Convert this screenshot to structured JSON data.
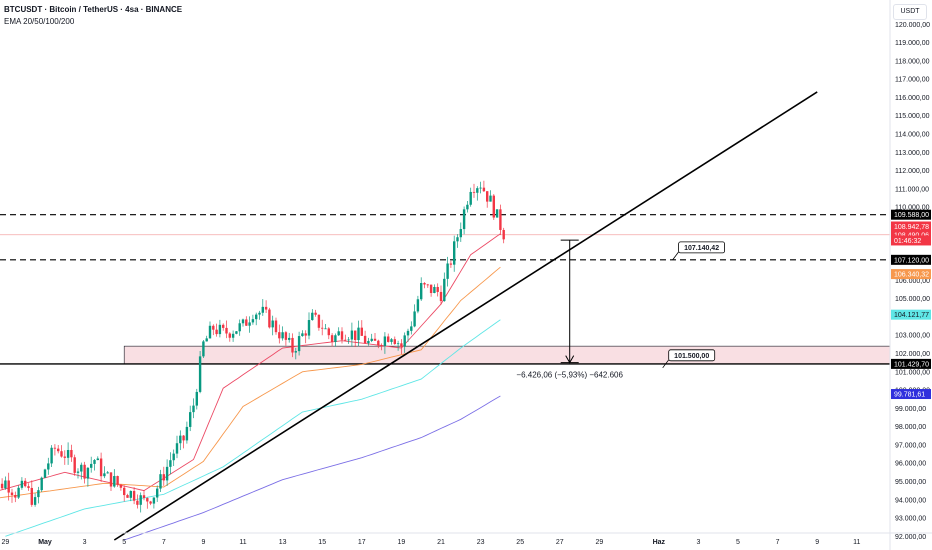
{
  "legend": {
    "symbol_line": "BTCUSDT · Bitcoin / TetherUS · 4sa · BINANCE",
    "indicator_line": "EMA 20/50/100/200"
  },
  "currency_label": "USDT",
  "chart_data": {
    "type": "candlestick",
    "ylim": [
      91800,
      121000
    ],
    "y_ticks": [
      {
        "value": 120000,
        "label": "120.000,00"
      },
      {
        "value": 119000,
        "label": "119.000,00"
      },
      {
        "value": 118000,
        "label": "118.000,00"
      },
      {
        "value": 117000,
        "label": "117.000,00"
      },
      {
        "value": 116000,
        "label": "116.000,00"
      },
      {
        "value": 115000,
        "label": "115.000,00"
      },
      {
        "value": 114000,
        "label": "114.000,00"
      },
      {
        "value": 113000,
        "label": "113.000,00"
      },
      {
        "value": 112000,
        "label": "112.000,00"
      },
      {
        "value": 111000,
        "label": "111.000,00"
      },
      {
        "value": 110000,
        "label": "110.000,00"
      },
      {
        "value": 106000,
        "label": "106.000,00"
      },
      {
        "value": 105000,
        "label": "105.000,00"
      },
      {
        "value": 103000,
        "label": "103.000,00"
      },
      {
        "value": 102000,
        "label": "102.000,00"
      },
      {
        "value": 101000,
        "label": "101.000,00"
      },
      {
        "value": 100000,
        "label": "100.000,00"
      },
      {
        "value": 99000,
        "label": "99.000,00"
      },
      {
        "value": 98000,
        "label": "98.000,00"
      },
      {
        "value": 97000,
        "label": "97.000,00"
      },
      {
        "value": 96000,
        "label": "96.000,00"
      },
      {
        "value": 95000,
        "label": "95.000,00"
      },
      {
        "value": 94000,
        "label": "94.000,00"
      },
      {
        "value": 93000,
        "label": "93.000,00"
      },
      {
        "value": 92000,
        "label": "92.000,00"
      }
    ],
    "x_ticks": [
      {
        "day": -2,
        "label": "29"
      },
      {
        "day": 0,
        "label": "May"
      },
      {
        "day": 2,
        "label": "3"
      },
      {
        "day": 4,
        "label": "5"
      },
      {
        "day": 6,
        "label": "7"
      },
      {
        "day": 8,
        "label": "9"
      },
      {
        "day": 10,
        "label": "11"
      },
      {
        "day": 12,
        "label": "13"
      },
      {
        "day": 14,
        "label": "15"
      },
      {
        "day": 16,
        "label": "17"
      },
      {
        "day": 18,
        "label": "19"
      },
      {
        "day": 20,
        "label": "21"
      },
      {
        "day": 22,
        "label": "23"
      },
      {
        "day": 24,
        "label": "25"
      },
      {
        "day": 26,
        "label": "27"
      },
      {
        "day": 28,
        "label": "29"
      },
      {
        "day": 31,
        "label": "Haz"
      },
      {
        "day": 33,
        "label": "3"
      },
      {
        "day": 35,
        "label": "5"
      },
      {
        "day": 37,
        "label": "7"
      },
      {
        "day": 39,
        "label": "9"
      },
      {
        "day": 41,
        "label": "11"
      }
    ],
    "ohlc_keypoints_close": [
      [
        -3.0,
        94800
      ],
      [
        -2.5,
        94600
      ],
      [
        -2.0,
        95000
      ],
      [
        -1.5,
        94400
      ],
      [
        -1.0,
        94700
      ],
      [
        -0.5,
        93800
      ],
      [
        0.0,
        95700
      ],
      [
        0.5,
        96800
      ],
      [
        1.0,
        96500
      ],
      [
        1.5,
        95900
      ],
      [
        2.0,
        95600
      ],
      [
        2.5,
        96200
      ],
      [
        3.0,
        95300
      ],
      [
        3.5,
        95000
      ],
      [
        4.0,
        94500
      ],
      [
        4.5,
        94300
      ],
      [
        5.0,
        93900
      ],
      [
        5.5,
        94300
      ],
      [
        6.0,
        95400
      ],
      [
        6.5,
        96600
      ],
      [
        7.0,
        97300
      ],
      [
        7.5,
        99200
      ],
      [
        8.0,
        102500
      ],
      [
        8.5,
        103400
      ],
      [
        9.0,
        103100
      ],
      [
        9.5,
        103300
      ],
      [
        10.0,
        103500
      ],
      [
        10.5,
        104300
      ],
      [
        11.0,
        104200
      ],
      [
        11.5,
        103600
      ],
      [
        12.0,
        102900
      ],
      [
        12.5,
        102200
      ],
      [
        13.0,
        103000
      ],
      [
        13.5,
        103900
      ],
      [
        14.0,
        103500
      ],
      [
        14.5,
        102800
      ],
      [
        15.0,
        103200
      ],
      [
        15.5,
        103100
      ],
      [
        16.0,
        102900
      ],
      [
        16.5,
        102400
      ],
      [
        17.0,
        102800
      ],
      [
        17.5,
        103100
      ],
      [
        18.0,
        102400
      ],
      [
        18.5,
        103700
      ],
      [
        19.0,
        105600
      ],
      [
        19.5,
        105500
      ],
      [
        20.0,
        105300
      ],
      [
        20.5,
        107100
      ],
      [
        21.0,
        109100
      ],
      [
        21.5,
        111200
      ],
      [
        22.0,
        111300
      ],
      [
        22.5,
        110300
      ],
      [
        23.0,
        109000
      ],
      [
        23.2,
        108500
      ]
    ],
    "ema_series": [
      {
        "name": "EMA 20",
        "color": "#ec4a65",
        "points": [
          [
            -3,
            94300
          ],
          [
            1,
            95500
          ],
          [
            5,
            94500
          ],
          [
            7.5,
            96200
          ],
          [
            9,
            100100
          ],
          [
            12,
            102300
          ],
          [
            15,
            102700
          ],
          [
            18,
            102300
          ],
          [
            20,
            104700
          ],
          [
            21.5,
            107400
          ],
          [
            23.2,
            108700
          ]
        ]
      },
      {
        "name": "EMA 50",
        "color": "#f7984d",
        "points": [
          [
            -3,
            94000
          ],
          [
            3,
            94900
          ],
          [
            6,
            94700
          ],
          [
            8,
            96100
          ],
          [
            10,
            99100
          ],
          [
            13,
            101000
          ],
          [
            16,
            101400
          ],
          [
            19,
            102200
          ],
          [
            21,
            104900
          ],
          [
            23.2,
            106900
          ]
        ]
      },
      {
        "name": "EMA 100",
        "color": "#5fe6e6",
        "points": [
          [
            -2,
            92000
          ],
          [
            2,
            93500
          ],
          [
            6,
            94300
          ],
          [
            9,
            95800
          ],
          [
            13,
            98800
          ],
          [
            16,
            99500
          ],
          [
            19,
            100600
          ],
          [
            21,
            102300
          ],
          [
            23.2,
            104000
          ]
        ]
      },
      {
        "name": "EMA 200",
        "color": "#7b6fe6",
        "points": [
          [
            4,
            91800
          ],
          [
            8,
            93300
          ],
          [
            12,
            95100
          ],
          [
            16,
            96300
          ],
          [
            19,
            97400
          ],
          [
            21,
            98400
          ],
          [
            23.2,
            99800
          ]
        ]
      }
    ],
    "horizontal_levels": [
      {
        "value": 109588,
        "style": "dashed",
        "color": "#000000"
      },
      {
        "value": 107120,
        "style": "dashed",
        "color": "#000000"
      },
      {
        "value": 101429.7,
        "style": "solid",
        "color": "#000000"
      },
      {
        "value": 108490.06,
        "style": "thin",
        "color": "#f4a7a7"
      }
    ],
    "support_zone": {
      "from_day": 4,
      "y_low": 101429.7,
      "y_high": 102400,
      "color": "#f9dfe3"
    },
    "trendline": {
      "start": [
        3.5,
        91800
      ],
      "end": [
        39.0,
        116300
      ]
    },
    "measure": {
      "day": 26.5,
      "from": 108200,
      "to": 101500,
      "label": "−6.426,06 (−5,93%) −642.606"
    },
    "callouts": [
      {
        "text": "107.140,42",
        "day": 32.0,
        "value": 108100
      },
      {
        "text": "101.500,00",
        "day": 31.5,
        "value": 102200
      }
    ],
    "price_tags": [
      {
        "value": 109588,
        "label": "109.588,00",
        "bg": "#000000",
        "fg": "#ffffff"
      },
      {
        "value": 108942.78,
        "label": "108.942,78",
        "bg": "#f23645",
        "fg": "#ffffff"
      },
      {
        "value": 108490.06,
        "label": "108.490,06",
        "bg": "#f23645",
        "fg": "#ffffff"
      },
      {
        "value": 108180,
        "label": "01:46:32",
        "bg": "#f23645",
        "fg": "#ffffff"
      },
      {
        "value": 107120,
        "label": "107.120,00",
        "bg": "#000000",
        "fg": "#ffffff"
      },
      {
        "value": 106340.32,
        "label": "106.340,32",
        "bg": "#f7984d",
        "fg": "#ffffff"
      },
      {
        "value": 104121.77,
        "label": "104.121,77",
        "bg": "#5fe6e6",
        "fg": "#131722"
      },
      {
        "value": 101429.7,
        "label": "101.429,70",
        "bg": "#000000",
        "fg": "#ffffff"
      },
      {
        "value": 99781.61,
        "label": "99.781,61",
        "bg": "#2f2fdd",
        "fg": "#ffffff"
      }
    ]
  }
}
